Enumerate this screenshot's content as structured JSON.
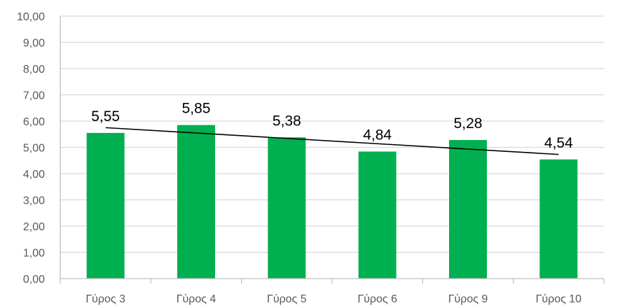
{
  "chart_data": {
    "type": "bar",
    "categories": [
      "Γύρος 3",
      "Γύρος 4",
      "Γύρος 5",
      "Γύρος 6",
      "Γύρος 9",
      "Γύρος 10"
    ],
    "values": [
      5.55,
      5.85,
      5.38,
      4.84,
      5.28,
      4.54
    ],
    "value_labels": [
      "5,55",
      "5,85",
      "5,38",
      "4,84",
      "5,28",
      "4,54"
    ],
    "ylim": [
      0,
      10
    ],
    "yticks": [
      "0,00",
      "1,00",
      "2,00",
      "3,00",
      "4,00",
      "5,00",
      "6,00",
      "7,00",
      "8,00",
      "9,00",
      "10,00"
    ],
    "trendline": {
      "type": "linear",
      "start": 5.75,
      "end": 4.73
    },
    "grid": true,
    "legend": "none",
    "colors": {
      "bar": "#00B050",
      "grid": "#D9D9D9",
      "trend": "#000000",
      "axis": "#BFBFBF"
    }
  }
}
